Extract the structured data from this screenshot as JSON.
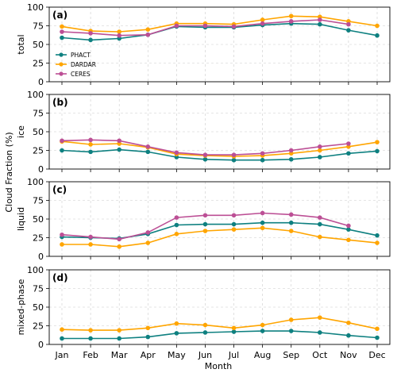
{
  "chart_data": [
    {
      "type": "line",
      "panel": "(a)",
      "ylabel": "total",
      "ylim": [
        0,
        100
      ],
      "yticks": [
        0,
        25,
        50,
        75,
        100
      ],
      "grid": true,
      "legend": "left",
      "categories": [
        "Jan",
        "Feb",
        "Mar",
        "Apr",
        "May",
        "Jun",
        "Jul",
        "Aug",
        "Sep",
        "Oct",
        "Nov",
        "Dec"
      ],
      "series": [
        {
          "name": "PHACT",
          "color": "#0e8080",
          "values": [
            59,
            56,
            58,
            63,
            74,
            73,
            73,
            76,
            78,
            77,
            69,
            62
          ]
        },
        {
          "name": "DARDAR",
          "color": "#ffa500",
          "values": [
            74,
            68,
            67,
            70,
            78,
            78,
            77,
            83,
            88,
            87,
            81,
            75
          ]
        },
        {
          "name": "CERES",
          "color": "#bc4f95",
          "values": [
            67,
            65,
            62,
            63,
            75,
            75,
            74,
            78,
            81,
            83,
            77,
            null
          ]
        }
      ]
    },
    {
      "type": "line",
      "panel": "(b)",
      "ylabel": "ice",
      "ylim": [
        0,
        100
      ],
      "yticks": [
        0,
        25,
        50,
        75,
        100
      ],
      "grid": true,
      "categories": [
        "Jan",
        "Feb",
        "Mar",
        "Apr",
        "May",
        "Jun",
        "Jul",
        "Aug",
        "Sep",
        "Oct",
        "Nov",
        "Dec"
      ],
      "series": [
        {
          "name": "PHACT",
          "color": "#0e8080",
          "values": [
            25,
            23,
            26,
            23,
            16,
            13,
            12,
            12,
            13,
            16,
            21,
            24
          ]
        },
        {
          "name": "DARDAR",
          "color": "#ffa500",
          "values": [
            37,
            33,
            34,
            29,
            20,
            18,
            17,
            18,
            21,
            25,
            30,
            36
          ]
        },
        {
          "name": "CERES",
          "color": "#bc4f95",
          "values": [
            38,
            39,
            38,
            30,
            22,
            19,
            19,
            21,
            25,
            30,
            34,
            null
          ]
        }
      ]
    },
    {
      "type": "line",
      "panel": "(c)",
      "ylabel": "liquid",
      "ylim": [
        0,
        100
      ],
      "yticks": [
        0,
        25,
        50,
        75,
        100
      ],
      "grid": true,
      "categories": [
        "Jan",
        "Feb",
        "Mar",
        "Apr",
        "May",
        "Jun",
        "Jul",
        "Aug",
        "Sep",
        "Oct",
        "Nov",
        "Dec"
      ],
      "series": [
        {
          "name": "PHACT",
          "color": "#0e8080",
          "values": [
            26,
            25,
            24,
            30,
            42,
            43,
            43,
            45,
            45,
            43,
            36,
            28
          ]
        },
        {
          "name": "DARDAR",
          "color": "#ffa500",
          "values": [
            16,
            16,
            13,
            18,
            30,
            34,
            36,
            38,
            34,
            26,
            22,
            18
          ]
        },
        {
          "name": "CERES",
          "color": "#bc4f95",
          "values": [
            29,
            26,
            23,
            32,
            52,
            55,
            55,
            58,
            56,
            52,
            41,
            null
          ]
        }
      ]
    },
    {
      "type": "line",
      "panel": "(d)",
      "ylabel": "mixed-phase",
      "ylim": [
        0,
        100
      ],
      "yticks": [
        0,
        25,
        50,
        75,
        100
      ],
      "grid": true,
      "categories": [
        "Jan",
        "Feb",
        "Mar",
        "Apr",
        "May",
        "Jun",
        "Jul",
        "Aug",
        "Sep",
        "Oct",
        "Nov",
        "Dec"
      ],
      "series": [
        {
          "name": "PHACT",
          "color": "#0e8080",
          "values": [
            8,
            8,
            8,
            10,
            15,
            16,
            17,
            18,
            18,
            16,
            12,
            9
          ]
        },
        {
          "name": "DARDAR",
          "color": "#ffa500",
          "values": [
            20,
            19,
            19,
            22,
            28,
            26,
            22,
            26,
            33,
            36,
            29,
            21
          ]
        }
      ]
    }
  ],
  "figure": {
    "ylabel": "Cloud Fraction (%)",
    "xlabel": "Month"
  }
}
